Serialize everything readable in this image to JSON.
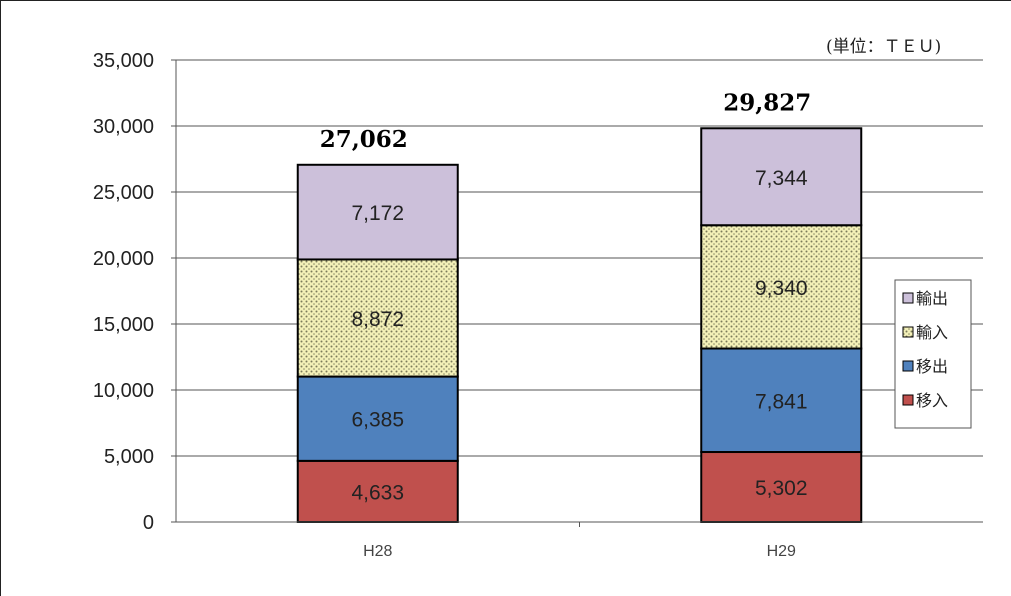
{
  "chart_data": {
    "type": "bar",
    "stacked": true,
    "unit_note": "(単位：ＴＥＵ)",
    "categories": [
      "H28",
      "H29"
    ],
    "series": [
      {
        "name": "移入",
        "values": [
          4633,
          5302
        ],
        "labels": [
          "4,633",
          "5,302"
        ],
        "color": "#c0504d",
        "pattern": "solid"
      },
      {
        "name": "移出",
        "values": [
          6385,
          7841
        ],
        "labels": [
          "6,385",
          "7,841"
        ],
        "color": "#4f81bd",
        "pattern": "solid"
      },
      {
        "name": "輸入",
        "values": [
          8872,
          9340
        ],
        "labels": [
          "8,872",
          "9,340"
        ],
        "color": "#f3f0b8",
        "pattern": "dots"
      },
      {
        "name": "輸出",
        "values": [
          7172,
          7344
        ],
        "labels": [
          "7,172",
          "7,344"
        ],
        "color": "#ccc0da",
        "pattern": "solid"
      }
    ],
    "totals": [
      27062,
      29827
    ],
    "total_labels": [
      "27,062",
      "29,827"
    ],
    "ylim": [
      0,
      35000
    ],
    "yticks": [
      0,
      5000,
      10000,
      15000,
      20000,
      25000,
      30000,
      35000
    ],
    "ytick_labels": [
      "0",
      "5,000",
      "10,000",
      "15,000",
      "20,000",
      "25,000",
      "30,000",
      "35,000"
    ],
    "grid": true,
    "legend_position": "right",
    "legend_order": [
      "輸出",
      "輸入",
      "移出",
      "移入"
    ]
  }
}
